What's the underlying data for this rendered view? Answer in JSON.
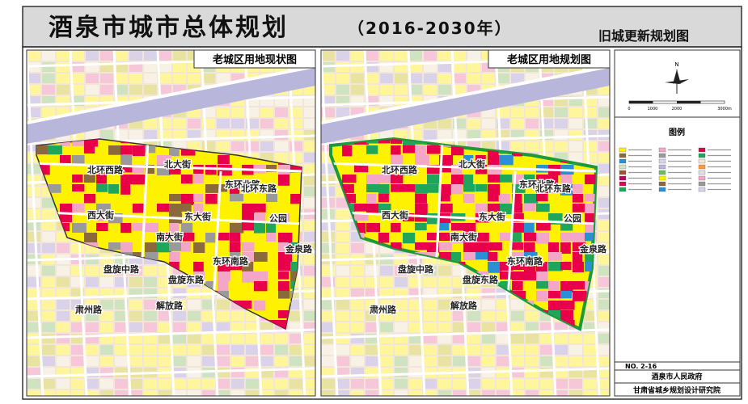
{
  "header": {
    "title": "酒泉市城市总体规划",
    "period": "（2016-2030年）",
    "map_name": "旧城更新规划图"
  },
  "panels": [
    {
      "label": "老城区用地现状图",
      "streets": [
        "北环西路",
        "西大街",
        "东大街",
        "南大街",
        "北大街",
        "东环北路",
        "东环南路",
        "北环东路",
        "盘旋中路",
        "盘旋东路",
        "解放路",
        "肃州路",
        "金泉路",
        "公园"
      ]
    },
    {
      "label": "老城区用地规划图",
      "streets": [
        "北环西路",
        "西大街",
        "东大街",
        "南大街",
        "北大街",
        "东环北路",
        "东环南路",
        "北环东路",
        "盘旋中路",
        "盘旋东路",
        "解放路",
        "肃州路",
        "金泉路",
        "公园"
      ]
    }
  ],
  "compass": {
    "north": "N"
  },
  "scale": {
    "ticks": [
      "0",
      "1000",
      "2000",
      "3000m"
    ]
  },
  "legend": {
    "title": "图例"
  },
  "sheet": {
    "number": "NO. 2-16",
    "client": "酒泉市人民政府",
    "designer": "甘肃省城乡规划设计研究院"
  }
}
